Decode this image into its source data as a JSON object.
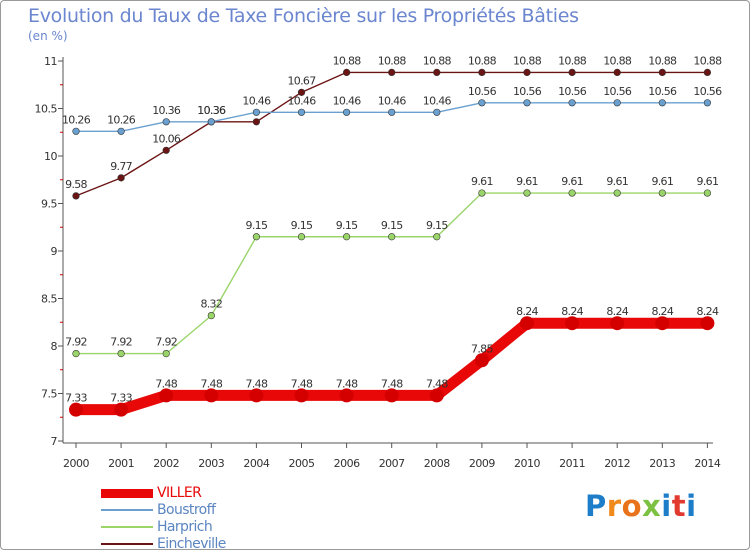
{
  "header": {
    "title": "Evolution du Taux de Taxe Foncière sur les Propriétés Bâties",
    "unit": "(en %)"
  },
  "logo": {
    "letters": [
      "P",
      "r",
      "o",
      "x",
      "i",
      "t",
      "i"
    ],
    "colors": [
      "#1d7dc9",
      "#f08a1c",
      "#e8731a",
      "#7cc142",
      "#1d7dc9",
      "#e23a2e",
      "#1d7dc9"
    ]
  },
  "chart_data": {
    "type": "line",
    "title": "Evolution du Taux de Taxe Foncière sur les Propriétés Bâties",
    "ylabel": "(en %)",
    "xlabel": "",
    "categories": [
      "2000",
      "2001",
      "2002",
      "2003",
      "2004",
      "2005",
      "2006",
      "2007",
      "2008",
      "2009",
      "2010",
      "2011",
      "2012",
      "2013",
      "2014"
    ],
    "ylim": [
      7,
      11
    ],
    "yticks": [
      "7",
      "7.5",
      "8",
      "8.5",
      "9",
      "9.5",
      "10",
      "10.5",
      "11"
    ],
    "grid": false,
    "legend_position": "bottom-left",
    "series": [
      {
        "name": "Eincheville",
        "color": "#6b1414",
        "values": [
          9.58,
          9.77,
          10.06,
          10.36,
          10.36,
          10.67,
          10.88,
          10.88,
          10.88,
          10.88,
          10.88,
          10.88,
          10.88,
          10.88,
          10.88
        ],
        "labels": [
          "9.58",
          "9.77",
          "10.06",
          "10.36",
          "",
          "10.67",
          "10.88",
          "10.88",
          "10.88",
          "10.88",
          "10.88",
          "10.88",
          "10.88",
          "10.88",
          "10.88"
        ]
      },
      {
        "name": "Boustroff",
        "color": "#6aa0d0",
        "values": [
          10.26,
          10.26,
          10.36,
          10.36,
          10.46,
          10.46,
          10.46,
          10.46,
          10.46,
          10.56,
          10.56,
          10.56,
          10.56,
          10.56,
          10.56
        ],
        "labels": [
          "10.26",
          "10.26",
          "10.36",
          "10.36",
          "10.46",
          "10.46",
          "10.46",
          "10.46",
          "10.46",
          "10.56",
          "10.56",
          "10.56",
          "10.56",
          "10.56",
          "10.56"
        ]
      },
      {
        "name": "Harprich",
        "color": "#9ad56a",
        "values": [
          7.92,
          7.92,
          7.92,
          8.32,
          9.15,
          9.15,
          9.15,
          9.15,
          9.15,
          9.61,
          9.61,
          9.61,
          9.61,
          9.61,
          9.61
        ],
        "labels": [
          "7.92",
          "7.92",
          "7.92",
          "8.32",
          "9.15",
          "9.15",
          "9.15",
          "9.15",
          "9.15",
          "9.61",
          "9.61",
          "9.61",
          "9.61",
          "9.61",
          "9.61"
        ]
      },
      {
        "name": "VILLER",
        "color": "#e80808",
        "values": [
          7.33,
          7.33,
          7.48,
          7.48,
          7.48,
          7.48,
          7.48,
          7.48,
          7.48,
          7.85,
          8.24,
          8.24,
          8.24,
          8.24,
          8.24
        ],
        "labels": [
          "7.33",
          "7.33",
          "7.48",
          "7.48",
          "7.48",
          "7.48",
          "7.48",
          "7.48",
          "7.48",
          "7.85",
          "8.24",
          "8.24",
          "8.24",
          "8.24",
          "8.24"
        ]
      }
    ],
    "legend": [
      {
        "name": "VILLER",
        "color": "#e80808",
        "text_color": "#e80808",
        "weight": "thick"
      },
      {
        "name": "Boustroff",
        "color": "#6aa0d0",
        "text_color": "#5b86c2",
        "weight": "thin"
      },
      {
        "name": "Harprich",
        "color": "#9ad56a",
        "text_color": "#5b86c2",
        "weight": "thin"
      },
      {
        "name": "Eincheville",
        "color": "#6b1414",
        "text_color": "#5b86c2",
        "weight": "thin"
      }
    ]
  }
}
